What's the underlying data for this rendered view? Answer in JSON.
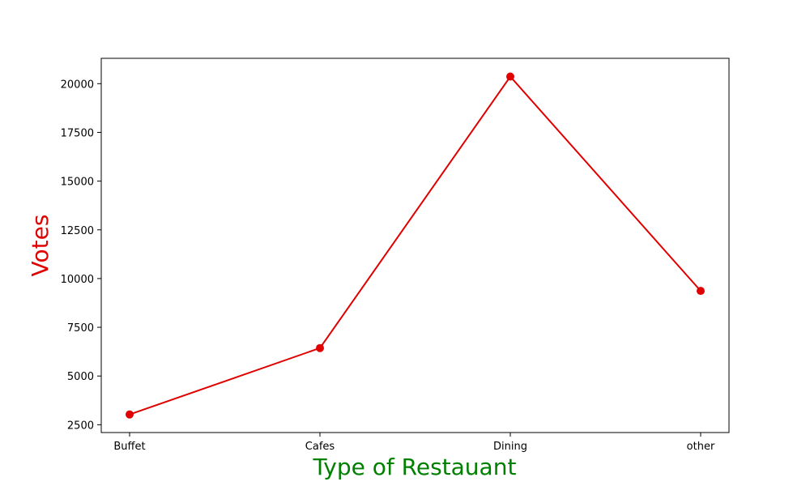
{
  "chart_data": {
    "type": "line",
    "categories": [
      "Buffet",
      "Cafes",
      "Dining",
      "other"
    ],
    "series": [
      {
        "values": [
          3028,
          6434,
          20363,
          9367
        ],
        "color": "#e00000",
        "marker": "circle"
      }
    ],
    "title": "",
    "xlabel": "Type of Restauant",
    "ylabel": "Votes",
    "xlabel_color": "#008000",
    "ylabel_color": "#e00000",
    "ylim": [
      2100,
      21300
    ],
    "yticks": [
      2500,
      5000,
      7500,
      10000,
      12500,
      15000,
      17500,
      20000
    ],
    "ytick_labels": [
      "2500",
      "5000",
      "7500",
      "10000",
      "12500",
      "15000",
      "17500",
      "20000"
    ],
    "grid": false,
    "legend": "none"
  }
}
